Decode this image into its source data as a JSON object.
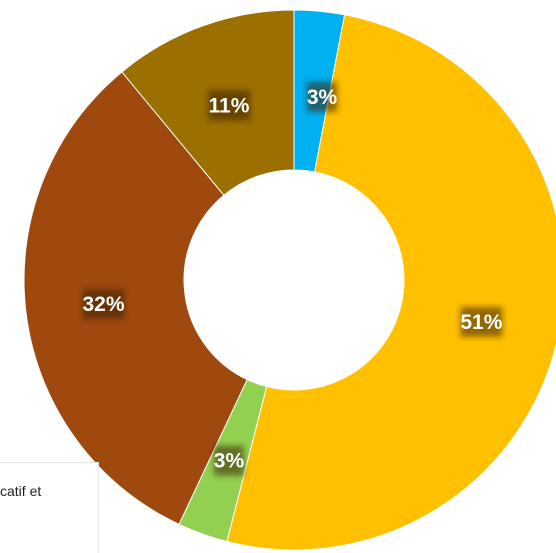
{
  "chart_data": {
    "type": "pie",
    "donut": true,
    "title": "",
    "slices": [
      {
        "value": 3,
        "label": "3%",
        "color": "#00b0f0"
      },
      {
        "value": 51,
        "label": "51%",
        "color": "#ffc000"
      },
      {
        "value": 3,
        "label": "3%",
        "color": "#92d050"
      },
      {
        "value": 32,
        "label": "32%",
        "color": "#a0490f"
      },
      {
        "value": 11,
        "label": "11%",
        "color": "#9b6f00"
      }
    ]
  },
  "legend_fragment": "catif et"
}
